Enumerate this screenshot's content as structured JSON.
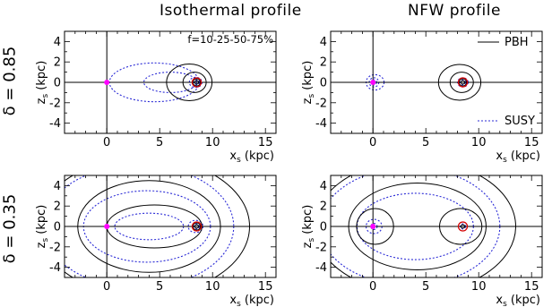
{
  "columns": [
    "Isothermal profile",
    "NFW profile"
  ],
  "rows": [
    "δ = 0.85",
    "δ = 0.35"
  ],
  "annotation": "f=10-25-50-75%",
  "colors": {
    "pbh": "#000000",
    "susy": "#2b2bd6",
    "origin_marker": "#ff00ff",
    "sun_marker": "#d40000"
  },
  "chart_data": [
    {
      "type": "contour",
      "panel": "Isothermal profile, δ = 0.85",
      "xlabel_main": "x",
      "xlabel_sub": "s",
      "xlabel_unit": "(kpc)",
      "ylabel_main": "z",
      "ylabel_sub": "s",
      "ylabel_unit": "(kpc)",
      "xlim": [
        -4,
        16
      ],
      "ylim": [
        -5,
        5
      ],
      "xticks": [
        0,
        5,
        10,
        15
      ],
      "yticks": [
        -4,
        -2,
        0,
        2,
        4
      ],
      "legend": [],
      "annotation": "f=10-25-50-75%",
      "pbh_contours": [
        {
          "cx": 8.5,
          "w": 0.35,
          "h": 0.35
        },
        {
          "cx": 8.5,
          "w": 0.7,
          "h": 0.7
        },
        {
          "cx": 8.3,
          "w": 2.2,
          "h": 2.0
        },
        {
          "cx": 7.8,
          "w": 4.3,
          "h": 3.6
        }
      ],
      "susy_contours": [
        {
          "cx": 8.5,
          "w": 0.5,
          "h": 0.5
        },
        {
          "cx": 8.4,
          "w": 1.2,
          "h": 1.0
        },
        {
          "cx": 6.0,
          "w": 5.0,
          "h": 2.0
        },
        {
          "cx": 4.5,
          "w": 8.5,
          "h": 3.8
        }
      ],
      "markers": [
        {
          "x": 0,
          "z": 0,
          "type": "origin"
        },
        {
          "x": 8.5,
          "z": 0,
          "type": "sun"
        }
      ]
    },
    {
      "type": "contour",
      "panel": "NFW profile, δ = 0.85",
      "xlabel_main": "x",
      "xlabel_sub": "s",
      "xlabel_unit": "(kpc)",
      "ylabel_main": "z",
      "ylabel_sub": "s",
      "ylabel_unit": "(kpc)",
      "xlim": [
        -4,
        16
      ],
      "ylim": [
        -5,
        5
      ],
      "xticks": [
        0,
        5,
        10,
        15
      ],
      "yticks": [
        -4,
        -2,
        0,
        2,
        4
      ],
      "legend": [
        {
          "label": "PBH",
          "style": "solid"
        },
        {
          "label": "SUSY",
          "style": "dotted"
        }
      ],
      "annotation": "",
      "pbh_contours": [
        {
          "cx": 8.5,
          "w": 0.35,
          "h": 0.35
        },
        {
          "cx": 8.5,
          "w": 0.7,
          "h": 0.7
        },
        {
          "cx": 8.4,
          "w": 2.2,
          "h": 2.0
        },
        {
          "cx": 8.2,
          "w": 4.0,
          "h": 3.5
        },
        {
          "cx": 0.05,
          "w": 0.25,
          "h": 0.25
        }
      ],
      "susy_contours": [
        {
          "cx": 8.5,
          "w": 0.5,
          "h": 0.5
        },
        {
          "cx": 8.5,
          "w": 1.0,
          "h": 0.9
        },
        {
          "cx": 0.1,
          "w": 0.5,
          "h": 0.5
        },
        {
          "cx": 0.1,
          "w": 0.9,
          "h": 0.9
        },
        {
          "cx": 0.2,
          "w": 1.7,
          "h": 1.5
        }
      ],
      "markers": [
        {
          "x": 0,
          "z": 0,
          "type": "origin"
        },
        {
          "x": 8.5,
          "z": 0,
          "type": "sun"
        }
      ]
    },
    {
      "type": "contour",
      "panel": "Isothermal profile, δ = 0.35",
      "xlabel_main": "x",
      "xlabel_sub": "s",
      "xlabel_unit": "(kpc)",
      "ylabel_main": "z",
      "ylabel_sub": "s",
      "ylabel_unit": "(kpc)",
      "xlim": [
        -4,
        16
      ],
      "ylim": [
        -5,
        5
      ],
      "xticks": [
        0,
        5,
        10,
        15
      ],
      "yticks": [
        -4,
        -2,
        0,
        2,
        4
      ],
      "legend": [],
      "annotation": "",
      "pbh_contours": [
        {
          "cx": 8.5,
          "w": 0.35,
          "h": 0.35
        },
        {
          "cx": 8.5,
          "w": 0.7,
          "h": 0.7
        },
        {
          "cx": 4.5,
          "w": 9.0,
          "h": 4.2
        },
        {
          "cx": 4.0,
          "w": 13.5,
          "h": 9.0
        },
        {
          "cx": 3.5,
          "w": 20.0,
          "h": 13.5
        }
      ],
      "susy_contours": [
        {
          "cx": 8.5,
          "w": 0.5,
          "h": 0.5
        },
        {
          "cx": 8.4,
          "w": 1.4,
          "h": 1.2
        },
        {
          "cx": 4.0,
          "w": 6.5,
          "h": 2.6
        },
        {
          "cx": 3.8,
          "w": 12.0,
          "h": 7.0
        },
        {
          "cx": 3.0,
          "w": 18.0,
          "h": 12.0
        }
      ],
      "markers": [
        {
          "x": 0,
          "z": 0,
          "type": "origin"
        },
        {
          "x": 8.5,
          "z": 0,
          "type": "sun"
        }
      ]
    },
    {
      "type": "contour",
      "panel": "NFW profile, δ = 0.35",
      "xlabel_main": "x",
      "xlabel_sub": "s",
      "xlabel_unit": "(kpc)",
      "ylabel_main": "z",
      "ylabel_sub": "s",
      "ylabel_unit": "(kpc)",
      "xlim": [
        -4,
        16
      ],
      "ylim": [
        -5,
        5
      ],
      "xticks": [
        0,
        5,
        10,
        15
      ],
      "yticks": [
        -4,
        -2,
        0,
        2,
        4
      ],
      "legend": [],
      "annotation": "",
      "pbh_contours": [
        {
          "cx": 8.5,
          "w": 0.35,
          "h": 0.35
        },
        {
          "cx": 8.3,
          "w": 4.0,
          "h": 3.5
        },
        {
          "cx": 0.2,
          "w": 3.5,
          "h": 3.5
        },
        {
          "cx": 4.2,
          "w": 13.0,
          "h": 8.5
        },
        {
          "cx": 4.0,
          "w": 19.0,
          "h": 13.0
        }
      ],
      "susy_contours": [
        {
          "cx": 8.5,
          "w": 0.5,
          "h": 0.5
        },
        {
          "cx": 0.1,
          "w": 0.6,
          "h": 0.6
        },
        {
          "cx": 0.1,
          "w": 1.5,
          "h": 1.4
        },
        {
          "cx": 4.0,
          "w": 11.0,
          "h": 6.5
        },
        {
          "cx": 3.5,
          "w": 17.0,
          "h": 11.5
        }
      ],
      "markers": [
        {
          "x": 0,
          "z": 0,
          "type": "origin"
        },
        {
          "x": 8.5,
          "z": 0,
          "type": "sun"
        }
      ]
    }
  ]
}
